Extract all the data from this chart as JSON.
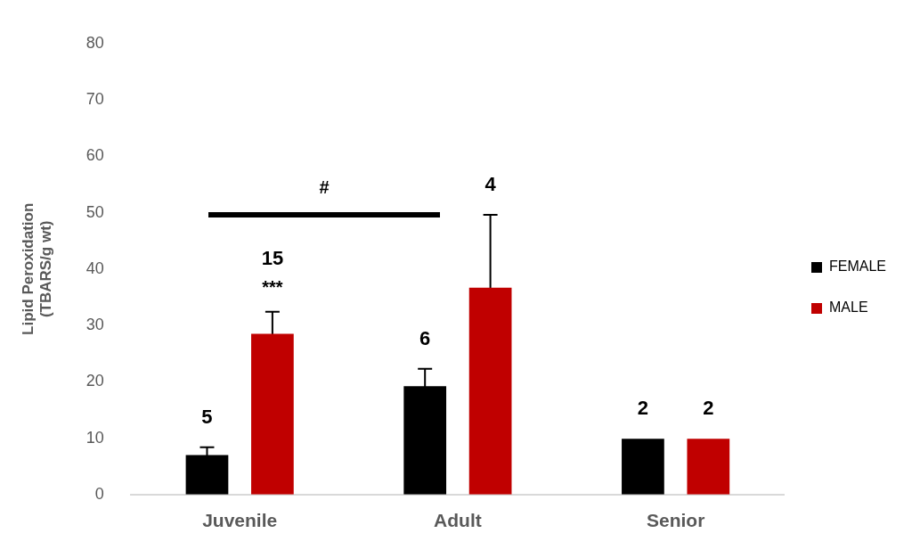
{
  "chart_data": {
    "type": "bar",
    "ylabel": "Lipid Peroxidation\n(TBARS/g wt)",
    "categories": [
      "Juvenile",
      "Adult",
      "Senior"
    ],
    "series": [
      {
        "name": "FEMALE",
        "color": "#000000",
        "values": [
          7.0,
          19.2,
          9.9
        ],
        "errors": [
          1.4,
          3.1,
          null
        ]
      },
      {
        "name": "MALE",
        "color": "#c00000",
        "values": [
          28.5,
          36.7,
          9.9
        ],
        "errors": [
          3.9,
          12.9,
          null
        ]
      }
    ],
    "annotations": [
      "5",
      "6",
      "2",
      "15",
      "4",
      "2",
      "***",
      "#"
    ],
    "ylim": [
      0,
      80
    ],
    "yticks": [
      0,
      10,
      20,
      30,
      40,
      50,
      60,
      70,
      80
    ],
    "grid": false,
    "legend": "right"
  }
}
